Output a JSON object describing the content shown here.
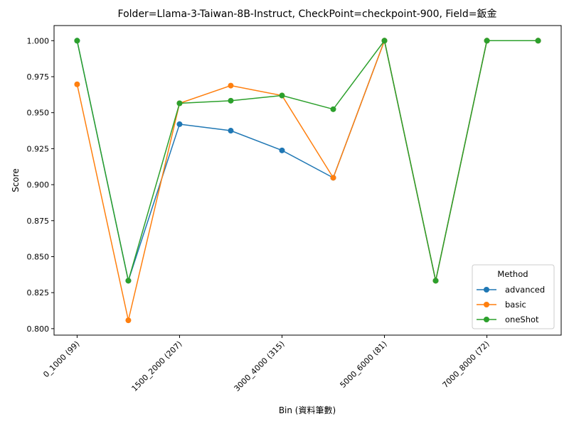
{
  "chart_data": {
    "type": "line",
    "title": "Folder=Llama-3-Taiwan-8B-Instruct, CheckPoint=checkpoint-900, Field=鈑金",
    "xlabel": "Bin (資料筆數)",
    "ylabel": "Score",
    "x_tick_labels": [
      "0_1000 (99)",
      "1500_2000 (207)",
      "3000_4000 (315)",
      "5000_6000 (81)",
      "7000_8000 (72)"
    ],
    "x_tick_positions": [
      0,
      2,
      4,
      6,
      8
    ],
    "x": [
      0,
      1,
      2,
      3,
      4,
      5,
      6,
      7,
      8,
      9
    ],
    "y_ticks": [
      "0.800",
      "0.825",
      "0.850",
      "0.875",
      "0.900",
      "0.925",
      "0.950",
      "0.975",
      "1.000"
    ],
    "ylim": [
      0.7955,
      1.0105
    ],
    "xlim": [
      -0.45,
      9.45
    ],
    "legend": {
      "title": "Method",
      "placement": "lower right"
    },
    "grid": false,
    "series": [
      {
        "name": "advanced",
        "color": "#1f77b4",
        "values": [
          1.0,
          0.8333,
          0.942,
          0.9375,
          0.9238,
          0.9048,
          1.0,
          0.8333,
          1.0,
          1.0
        ]
      },
      {
        "name": "basic",
        "color": "#ff7f0e",
        "values": [
          0.9697,
          0.8058,
          0.9565,
          0.9688,
          0.9619,
          0.9048,
          1.0,
          0.8333,
          1.0,
          1.0
        ]
      },
      {
        "name": "oneShot",
        "color": "#2ca02c",
        "values": [
          1.0,
          0.8333,
          0.9565,
          0.9583,
          0.9619,
          0.9524,
          1.0,
          0.8333,
          1.0,
          1.0
        ]
      }
    ]
  }
}
